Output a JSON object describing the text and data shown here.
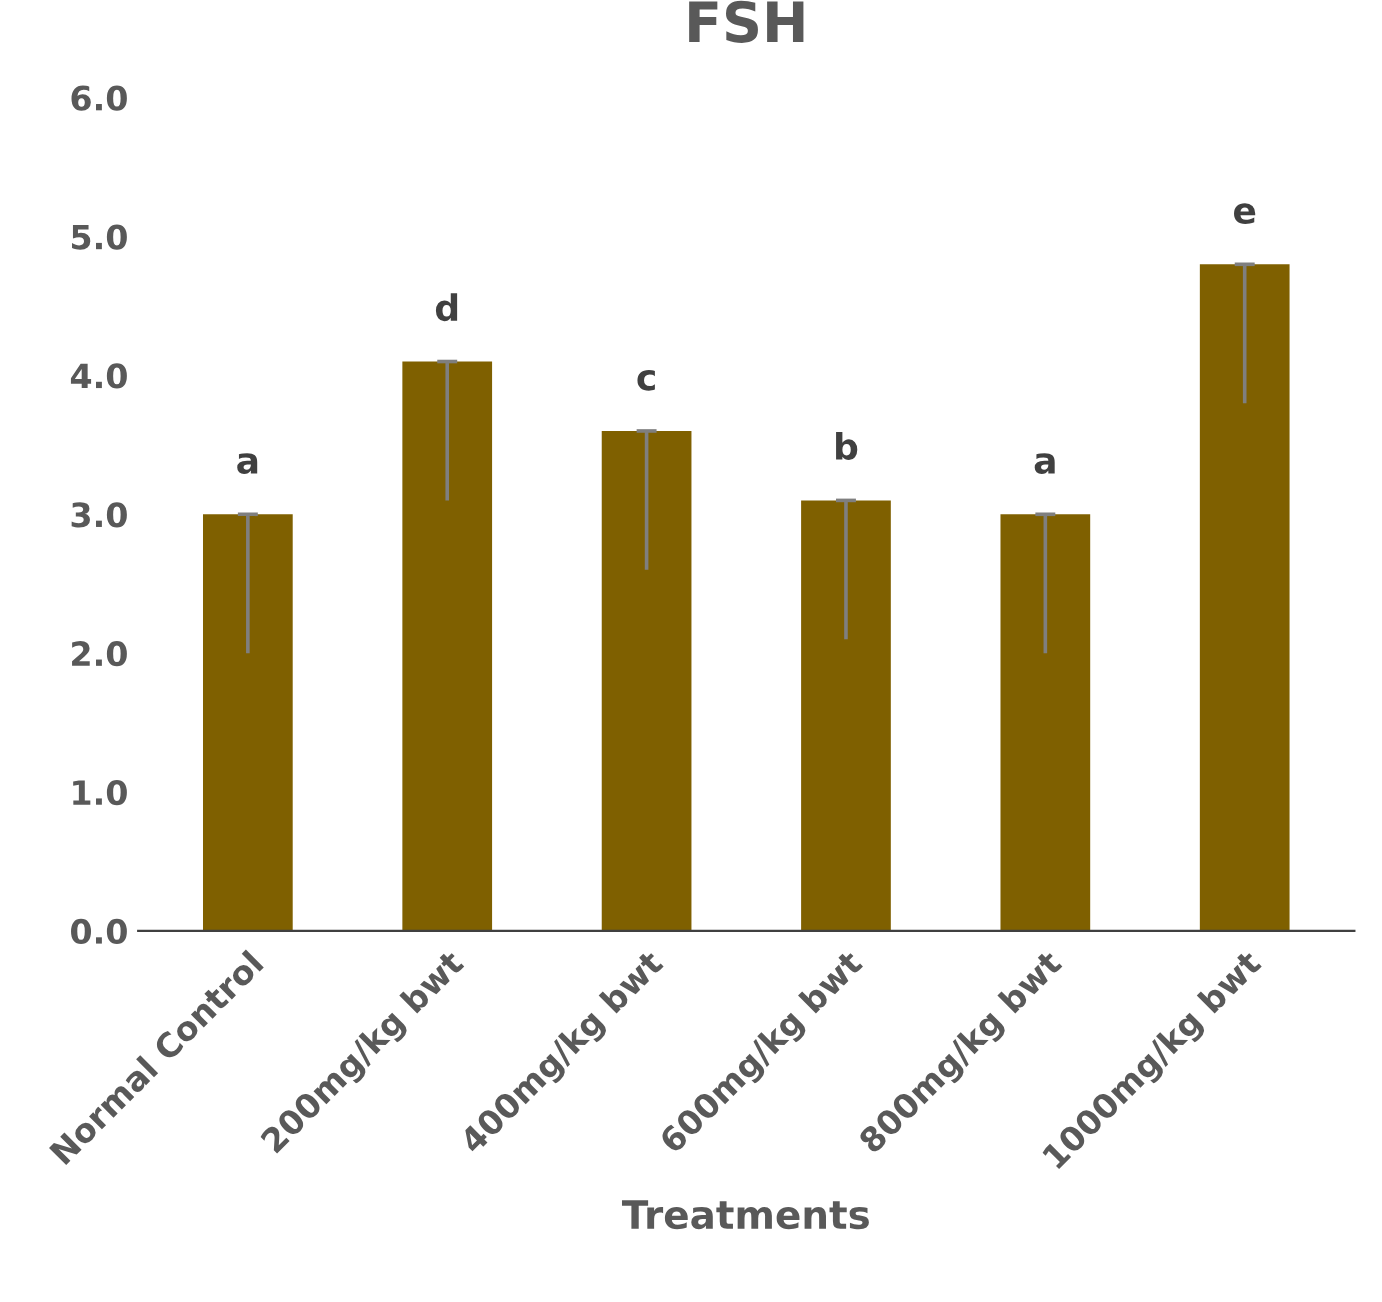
{
  "chart_data": {
    "type": "bar",
    "title": "FSH",
    "xlabel": "Treatments",
    "categories": [
      "Normal Control",
      "200mg/kg bwt",
      "400mg/kg bwt",
      "600mg/kg bwt",
      "800mg/kg bwt",
      "1000mg/kg bwt"
    ],
    "values": [
      3.0,
      4.1,
      3.6,
      3.1,
      3.0,
      4.8
    ],
    "errors": [
      [
        2.0,
        3.0
      ],
      [
        3.1,
        4.1
      ],
      [
        2.6,
        3.6
      ],
      [
        2.1,
        3.1
      ],
      [
        2.0,
        3.0
      ],
      [
        3.8,
        4.8
      ]
    ],
    "color": "#7f6000",
    "ylim": [
      0,
      6
    ],
    "yticks": [
      {
        "value": 0,
        "label": "0.0"
      },
      {
        "value": 1,
        "label": "1.0"
      },
      {
        "value": 2,
        "label": "2.0"
      },
      {
        "value": 3,
        "label": "3.0"
      },
      {
        "value": 4,
        "label": "4.0"
      },
      {
        "value": 5,
        "label": "5.0"
      },
      {
        "value": 6,
        "label": "6.0"
      }
    ],
    "grid": false,
    "legend": false,
    "annotations": [
      {
        "text": "a",
        "x": "Normal Control",
        "y": 3.0
      },
      {
        "text": "d",
        "x": "200mg/kg bwt",
        "y": 4.1
      },
      {
        "text": "c",
        "x": "400mg/kg bwt",
        "y": 3.6
      },
      {
        "text": "b",
        "x": "600mg/kg bwt",
        "y": 3.1
      },
      {
        "text": "a",
        "x": "800mg/kg bwt",
        "y": 3.0
      },
      {
        "text": "e",
        "x": "1000mg/kg bwt",
        "y": 4.8
      }
    ]
  }
}
